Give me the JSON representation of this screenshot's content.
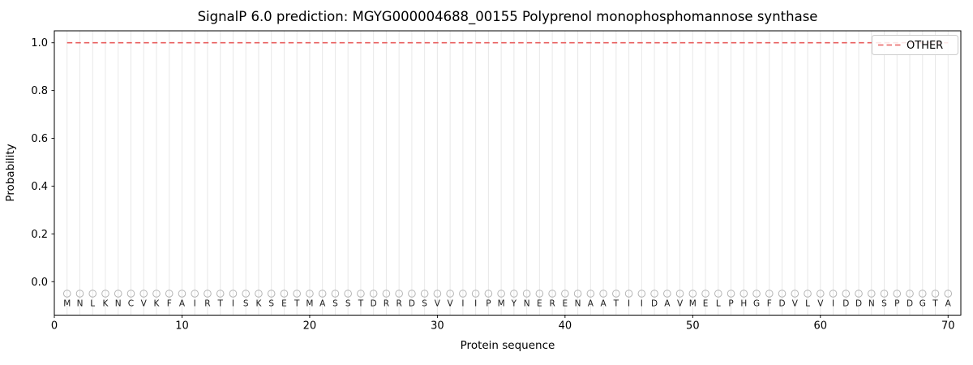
{
  "chart_data": {
    "type": "line",
    "title": "SignalP 6.0 prediction: MGYG000004688_00155 Polyprenol monophosphomannose synthase",
    "xlabel": "Protein sequence",
    "ylabel": "Probability",
    "xlim": [
      0,
      71
    ],
    "ylim": [
      -0.14,
      1.05
    ],
    "x_ticks": [
      0,
      10,
      20,
      30,
      40,
      50,
      60,
      70
    ],
    "y_ticks": [
      0.0,
      0.2,
      0.4,
      0.6,
      0.8,
      1.0
    ],
    "grid": {
      "show": true,
      "axis": "x",
      "per_residue": true,
      "color": "#e8e8e8"
    },
    "legend": [
      {
        "label": "OTHER",
        "color": "#e85f5f",
        "linestyle": "dashed",
        "location": "upper right"
      }
    ],
    "sequence": "MNLKNCVKFAIRTISKSETMASSTDRRDSVVIIPMYNERENAATIIDAVMELPHGFDVLVIDDNSPDGTA",
    "markers": {
      "shape": "open-circle",
      "y": -0.05,
      "color": "#b5b5b5"
    },
    "series": [
      {
        "name": "OTHER",
        "color": "#e85f5f",
        "linestyle": "dashed",
        "x_start": 1,
        "values": [
          1.0,
          1.0,
          1.0,
          1.0,
          1.0,
          1.0,
          1.0,
          1.0,
          1.0,
          1.0,
          1.0,
          1.0,
          1.0,
          1.0,
          1.0,
          1.0,
          1.0,
          1.0,
          1.0,
          1.0,
          1.0,
          1.0,
          1.0,
          1.0,
          1.0,
          1.0,
          1.0,
          1.0,
          1.0,
          1.0,
          1.0,
          1.0,
          1.0,
          1.0,
          1.0,
          1.0,
          1.0,
          1.0,
          1.0,
          1.0,
          1.0,
          1.0,
          1.0,
          1.0,
          1.0,
          1.0,
          1.0,
          1.0,
          1.0,
          1.0,
          1.0,
          1.0,
          1.0,
          1.0,
          1.0,
          1.0,
          1.0,
          1.0,
          1.0,
          1.0,
          1.0,
          1.0,
          1.0,
          1.0,
          1.0,
          1.0,
          1.0,
          1.0,
          1.0,
          1.0
        ]
      }
    ]
  }
}
